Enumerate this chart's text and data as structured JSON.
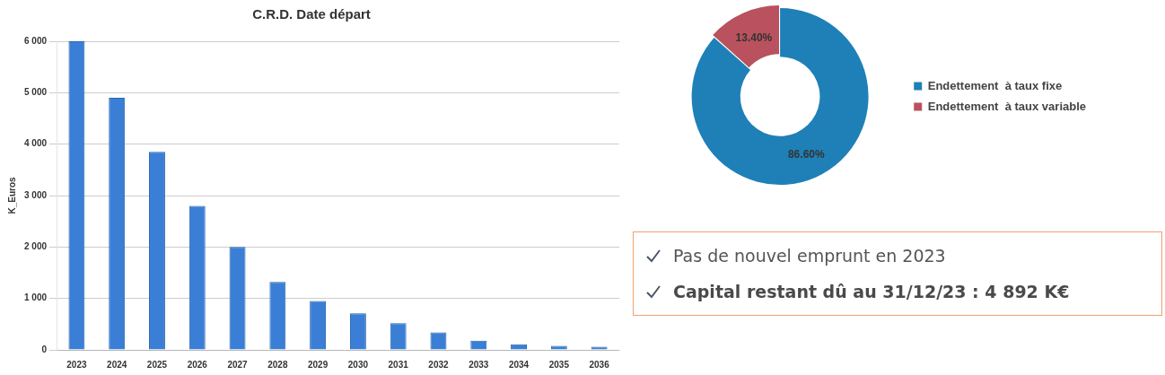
{
  "chart_data": [
    {
      "type": "bar",
      "title": "C.R.D. Date départ",
      "ylabel": "K_Euros",
      "categories": [
        "2023",
        "2024",
        "2025",
        "2026",
        "2027",
        "2028",
        "2029",
        "2030",
        "2031",
        "2032",
        "2033",
        "2034",
        "2035",
        "2036"
      ],
      "values": [
        6000,
        4900,
        3850,
        2800,
        2000,
        1320,
        950,
        710,
        520,
        340,
        180,
        110,
        80,
        60
      ],
      "color": "#3a7fd5",
      "ylim": [
        0,
        6000
      ],
      "yticks": [
        {
          "value": 0,
          "label": "0"
        },
        {
          "value": 1000,
          "label": "1 000"
        },
        {
          "value": 2000,
          "label": "2 000"
        },
        {
          "value": 3000,
          "label": "3 000"
        },
        {
          "value": 4000,
          "label": "4 000"
        },
        {
          "value": 5000,
          "label": "5 000"
        },
        {
          "value": 6000,
          "label": "6 000"
        }
      ],
      "grid": "y",
      "legend": false
    },
    {
      "type": "donut",
      "categories": [
        "Endettement  à taux fixe",
        "Endettement  à taux variable"
      ],
      "values": [
        86.6,
        13.4
      ],
      "colors": [
        "#1f80b8",
        "#b9525e"
      ],
      "value_labels": [
        "86.60%",
        "13.40%"
      ],
      "legend": "right"
    },
    {
      "type": "other",
      "annotations": [
        "Pas de nouvel emprunt en 2023",
        "Capital restant dû au 31/12/23 : 4 892 K€"
      ]
    }
  ]
}
